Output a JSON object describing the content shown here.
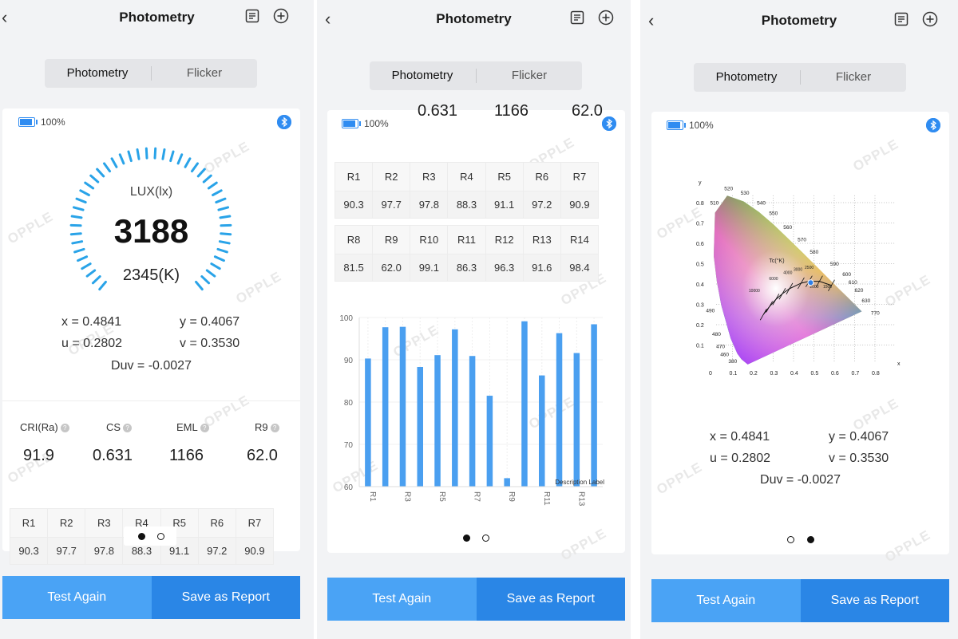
{
  "header": {
    "title": "Photometry",
    "back_icon": "chevron-left-icon",
    "report_icon": "document-list-icon",
    "add_icon": "plus-circle-icon"
  },
  "tabs": {
    "photometry": "Photometry",
    "flicker": "Flicker"
  },
  "device": {
    "battery": "100%",
    "bluetooth_icon": "bluetooth-icon"
  },
  "watermark": "OPPLE",
  "gauge": {
    "unit": "LUX(lx)",
    "lux": "3188",
    "cct": "2345(K)"
  },
  "coords": {
    "x": "x = 0.4841",
    "y": "y = 0.4067",
    "u": "u = 0.2802",
    "v": "v = 0.3530",
    "duv": "Duv = -0.0027"
  },
  "metrics": [
    {
      "label": "CRI(Ra)",
      "value": "91.9"
    },
    {
      "label": "CS",
      "value": "0.631"
    },
    {
      "label": "EML",
      "value": "1166"
    },
    {
      "label": "R9",
      "value": "62.0"
    }
  ],
  "peek_values": [
    "0.631",
    "1166",
    "62.0"
  ],
  "r_table": {
    "row1": {
      "labels": [
        "R1",
        "R2",
        "R3",
        "R4",
        "R5",
        "R6",
        "R7"
      ],
      "values": [
        "90.3",
        "97.7",
        "97.8",
        "88.3",
        "91.1",
        "97.2",
        "90.9"
      ]
    },
    "row2": {
      "labels": [
        "R8",
        "R9",
        "R10",
        "R11",
        "R12",
        "R13",
        "R14"
      ],
      "values": [
        "81.5",
        "62.0",
        "99.1",
        "86.3",
        "96.3",
        "91.6",
        "98.4"
      ]
    }
  },
  "cie": {
    "y_axis": "y",
    "x_axis": "x",
    "tc_label": "Tc(°K)",
    "x_ticks": [
      "0",
      "0.1",
      "0.2",
      "0.3",
      "0.4",
      "0.5",
      "0.6",
      "0.7",
      "0.8"
    ],
    "y_ticks": [
      "0.1",
      "0.2",
      "0.3",
      "0.4",
      "0.5",
      "0.6",
      "0.7",
      "0.8"
    ],
    "wavelengths": [
      "520",
      "530",
      "510",
      "540",
      "550",
      "560",
      "570",
      "580",
      "590",
      "600",
      "610",
      "620",
      "630",
      "770",
      "490",
      "480",
      "470",
      "460",
      "380"
    ],
    "temps": [
      "10000",
      "6000",
      "4000",
      "3000",
      "2500",
      "2000",
      "1500"
    ],
    "point": {
      "x": 0.4841,
      "y": 0.4067
    }
  },
  "chart_data": {
    "type": "bar",
    "categories": [
      "R1",
      "R2",
      "R3",
      "R4",
      "R5",
      "R6",
      "R7",
      "R8",
      "R9",
      "R10",
      "R11",
      "R12",
      "R13",
      "R14"
    ],
    "x_tick_labels": [
      "R1",
      "R3",
      "R5",
      "R7",
      "R9",
      "R11",
      "R13"
    ],
    "values": [
      90.3,
      97.7,
      97.8,
      88.3,
      91.1,
      97.2,
      90.9,
      81.5,
      62.0,
      99.1,
      86.3,
      96.3,
      91.6,
      98.4
    ],
    "ylim": [
      60,
      100
    ],
    "y_ticks": [
      "60",
      "70",
      "80",
      "90",
      "100"
    ],
    "legend": "Description Label",
    "color": "#4a9ff0"
  },
  "buttons": {
    "test_again": "Test Again",
    "save_report": "Save as Report"
  },
  "colors": {
    "accent": "#2a86e6",
    "accent_light": "#4aa3f5",
    "gauge": "#29a3e8"
  }
}
